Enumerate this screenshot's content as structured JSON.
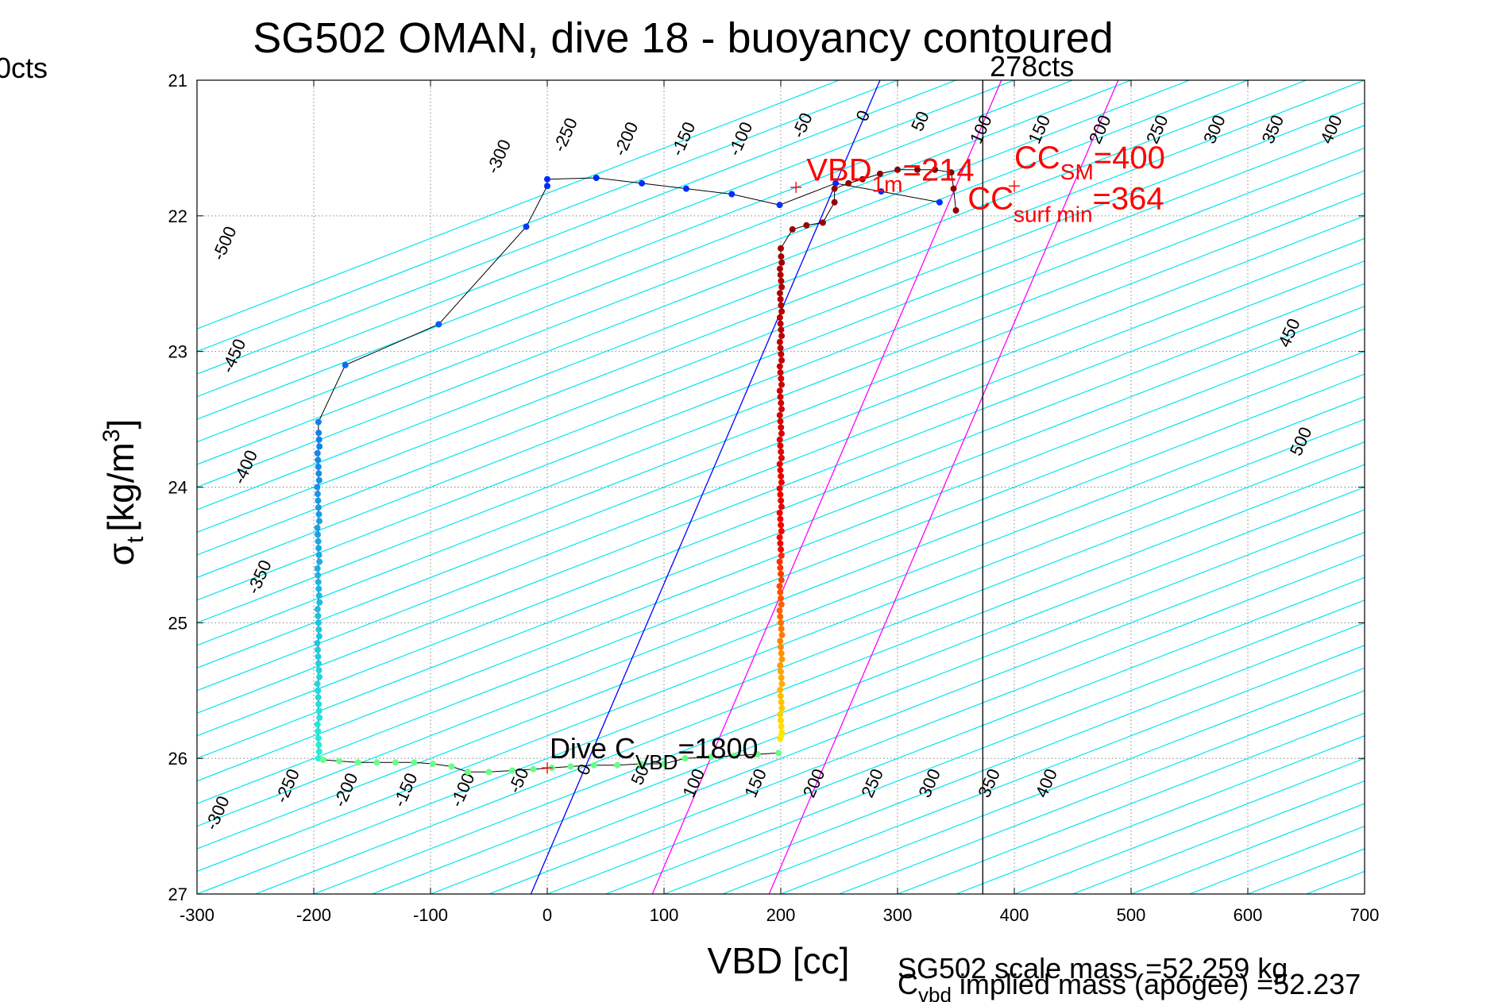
{
  "chart_data": {
    "type": "scatter",
    "title": "SG502 OMAN, dive 18 - buoyancy contoured",
    "xlabel": "VBD [cc]",
    "ylabel_main": "σ",
    "ylabel_sub": "t",
    "ylabel_unit": "[kg/m",
    "ylabel_sup": "3",
    "ylabel_close": "]",
    "xlim": [
      -300,
      700
    ],
    "ylim": [
      21,
      27
    ],
    "y_reversed": true,
    "grid": true,
    "xticks": [
      -300,
      -200,
      -100,
      0,
      100,
      200,
      300,
      400,
      500,
      600,
      700
    ],
    "yticks": [
      21,
      22,
      23,
      24,
      25,
      26,
      27
    ],
    "contours": {
      "levels": [
        -500,
        -450,
        -400,
        -350,
        -300,
        -250,
        -200,
        -150,
        -100,
        -50,
        0,
        50,
        100,
        150,
        200,
        250,
        300,
        350,
        400,
        450,
        500
      ],
      "offset_per_sigma": 50,
      "color": "#00e5ee"
    },
    "contour_labels": [
      {
        "text": "-500",
        "x": -272,
        "y": 22.22
      },
      {
        "text": "-450",
        "x": -264,
        "y": 23.05
      },
      {
        "text": "-400",
        "x": -254,
        "y": 23.87
      },
      {
        "text": "-350",
        "x": -242,
        "y": 24.68
      },
      {
        "text": "-300",
        "x": -37,
        "y": 21.58
      },
      {
        "text": "-250",
        "x": 20,
        "y": 21.42
      },
      {
        "text": "-200",
        "x": 72,
        "y": 21.45
      },
      {
        "text": "-150",
        "x": 121,
        "y": 21.45
      },
      {
        "text": "-100",
        "x": 170,
        "y": 21.45
      },
      {
        "text": "-50",
        "x": 223,
        "y": 21.35
      },
      {
        "text": "0",
        "x": 275,
        "y": 21.28
      },
      {
        "text": "50",
        "x": 324,
        "y": 21.32
      },
      {
        "text": "100",
        "x": 376,
        "y": 21.38
      },
      {
        "text": "150",
        "x": 426,
        "y": 21.38
      },
      {
        "text": "200",
        "x": 478,
        "y": 21.38
      },
      {
        "text": "250",
        "x": 527,
        "y": 21.38
      },
      {
        "text": "300",
        "x": 576,
        "y": 21.38
      },
      {
        "text": "350",
        "x": 626,
        "y": 21.38
      },
      {
        "text": "400",
        "x": 676,
        "y": 21.38
      },
      {
        "text": "450",
        "x": 640,
        "y": 22.88
      },
      {
        "text": "500",
        "x": 650,
        "y": 23.68
      },
      {
        "text": "-300",
        "x": -278,
        "y": 26.42
      },
      {
        "text": "-250",
        "x": -218,
        "y": 26.22
      },
      {
        "text": "-200",
        "x": -168,
        "y": 26.25
      },
      {
        "text": "-150",
        "x": -117,
        "y": 26.25
      },
      {
        "text": "-100",
        "x": -68,
        "y": 26.25
      },
      {
        "text": "-50",
        "x": -20,
        "y": 26.18
      },
      {
        "text": "0",
        "x": 36,
        "y": 26.1
      },
      {
        "text": "50",
        "x": 84,
        "y": 26.14
      },
      {
        "text": "100",
        "x": 130,
        "y": 26.2
      },
      {
        "text": "150",
        "x": 183,
        "y": 26.2
      },
      {
        "text": "200",
        "x": 233,
        "y": 26.2
      },
      {
        "text": "250",
        "x": 283,
        "y": 26.2
      },
      {
        "text": "300",
        "x": 332,
        "y": 26.2
      },
      {
        "text": "350",
        "x": 383,
        "y": 26.2
      },
      {
        "text": "400",
        "x": 432,
        "y": 26.2
      }
    ],
    "blue_line": {
      "color": "#0000ff",
      "points": [
        [
          -14,
          27
        ],
        [
          285,
          21
        ]
      ]
    },
    "magenta_lines": {
      "color": "#ff00ff",
      "lines": [
        [
          [
            90,
            27
          ],
          [
            389,
            21
          ]
        ],
        [
          [
            190,
            27
          ],
          [
            489,
            21
          ]
        ]
      ]
    },
    "vertical_line": {
      "x": 373,
      "color": "#000000",
      "label": "278cts",
      "label_x": 379,
      "label_y": 20.97
    },
    "descent": {
      "line_color": "#000000",
      "points": [
        [
          336,
          21.9
        ],
        [
          286,
          21.82
        ],
        [
          247,
          21.76
        ],
        [
          199,
          21.92
        ],
        [
          158,
          21.84
        ],
        [
          119,
          21.8
        ],
        [
          81,
          21.76
        ],
        [
          42,
          21.72
        ],
        [
          0,
          21.73
        ],
        [
          0,
          21.78
        ],
        [
          -18,
          22.08
        ],
        [
          -93,
          22.8
        ],
        [
          -173,
          23.1
        ],
        [
          -196,
          23.52
        ],
        [
          -196,
          26.0
        ]
      ],
      "bottom_points": [
        [
          -192,
          26.01
        ],
        [
          -178,
          26.02
        ],
        [
          -162,
          26.03
        ],
        [
          -146,
          26.03
        ],
        [
          -130,
          26.03
        ],
        [
          -114,
          26.03
        ],
        [
          -98,
          26.04
        ],
        [
          -82,
          26.06
        ],
        [
          -68,
          26.1
        ],
        [
          -50,
          26.1
        ],
        [
          -30,
          26.09
        ],
        [
          -12,
          26.08
        ],
        [
          4,
          26.07
        ],
        [
          20,
          26.06
        ],
        [
          40,
          26.05
        ],
        [
          60,
          26.05
        ],
        [
          80,
          26.04
        ],
        [
          100,
          26.04
        ],
        [
          118,
          26.0
        ],
        [
          140,
          25.99
        ],
        [
          160,
          25.98
        ],
        [
          180,
          25.97
        ],
        [
          198,
          25.96
        ]
      ]
    },
    "ascent": {
      "points": [
        [
          200,
          25.84
        ],
        [
          200,
          22.24
        ],
        [
          210,
          22.1
        ],
        [
          222,
          22.07
        ],
        [
          236,
          22.05
        ],
        [
          246,
          21.9
        ],
        [
          246,
          21.8
        ],
        [
          258,
          21.76
        ],
        [
          270,
          21.73
        ],
        [
          285,
          21.69
        ],
        [
          300,
          21.66
        ],
        [
          317,
          21.66
        ],
        [
          332,
          21.66
        ],
        [
          346,
          21.68
        ],
        [
          348,
          21.8
        ],
        [
          350,
          21.96
        ]
      ]
    },
    "markers": [
      {
        "x": 213,
        "y": 21.79,
        "color": "#ff0000"
      },
      {
        "x": 400,
        "y": 21.78,
        "color": "#ff0000"
      },
      {
        "x": 0,
        "y": 26.07,
        "color": "#ff0000"
      }
    ],
    "annotations": {
      "vbd_main": "VBD",
      "vbd_sub": "1m",
      "vbd_value": "=214",
      "ccsm_main": "CC",
      "ccsm_sub": "SM",
      "ccsm_value": "=400",
      "ccsurf_main": "CC",
      "ccsurf_sub": "surf min",
      "ccsurf_value": "=364",
      "cvbd_main": "Dive C",
      "cvbd_sub": "VBD",
      "cvbd_value": "=1800",
      "left_cut": "0cts"
    },
    "footer": {
      "line1": "SG502 scale mass =52.259 kg",
      "line2_main": "C",
      "line2_sub": "vbd",
      "line2_rest": " implied mass (apogee) =52.237"
    }
  }
}
